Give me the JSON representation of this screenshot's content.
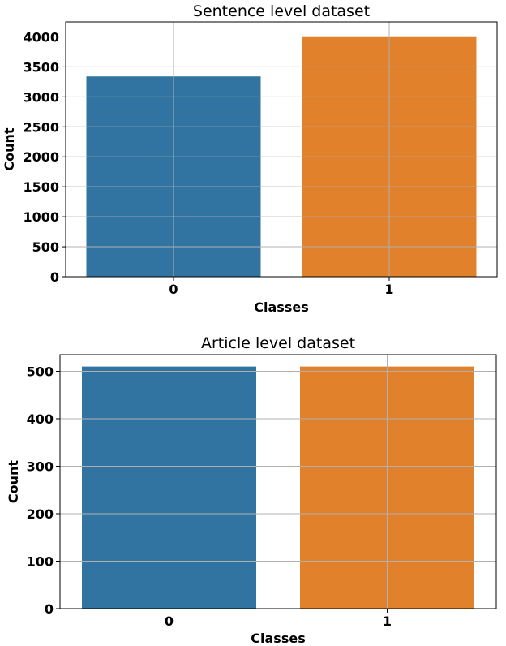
{
  "chart_data": [
    {
      "type": "bar",
      "title": "Sentence level dataset",
      "xlabel": "Classes",
      "ylabel": "Count",
      "categories": [
        "0",
        "1"
      ],
      "values": [
        3340,
        4010
      ],
      "colors": [
        "#3274a1",
        "#e1812c"
      ],
      "ylim": [
        0,
        4250
      ],
      "yticks": [
        0,
        500,
        1000,
        1500,
        2000,
        2500,
        3000,
        3500,
        4000
      ],
      "grid": true
    },
    {
      "type": "bar",
      "title": "Article level dataset",
      "xlabel": "Classes",
      "ylabel": "Count",
      "categories": [
        "0",
        "1"
      ],
      "values": [
        510,
        510
      ],
      "colors": [
        "#3274a1",
        "#e1812c"
      ],
      "ylim": [
        0,
        535
      ],
      "yticks": [
        0,
        100,
        200,
        300,
        400,
        500
      ],
      "grid": true
    }
  ]
}
